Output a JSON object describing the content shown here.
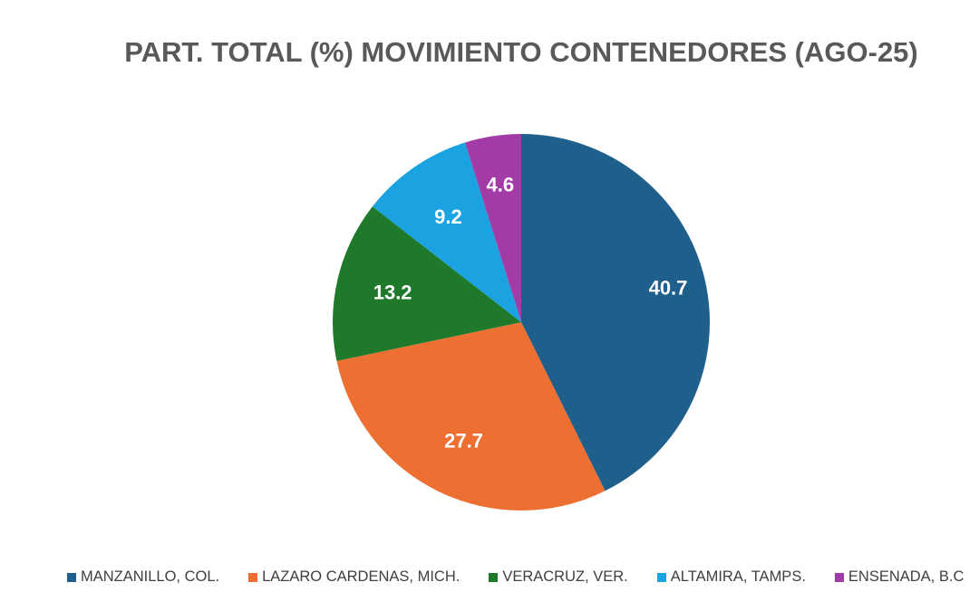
{
  "chart_data": {
    "type": "pie",
    "title": "PART. TOTAL (%) MOVIMIENTO CONTENEDORES (AGO-25)",
    "categories": [
      "MANZANILLO, COL.",
      "LAZARO CARDENAS, MICH.",
      "VERACRUZ, VER.",
      "ALTAMIRA, TAMPS.",
      "ENSENADA, B.C"
    ],
    "values": [
      40.7,
      27.7,
      13.2,
      9.2,
      4.6
    ],
    "data_labels": [
      "40.7",
      "27.7",
      "13.2",
      "9.2",
      "4.6"
    ],
    "colors": [
      "#1f5f8b",
      "#ed7032",
      "#1e7a2a",
      "#1aa3e0",
      "#a23ba6"
    ],
    "legend_position": "bottom",
    "start_angle": "top",
    "direction": "clockwise"
  }
}
